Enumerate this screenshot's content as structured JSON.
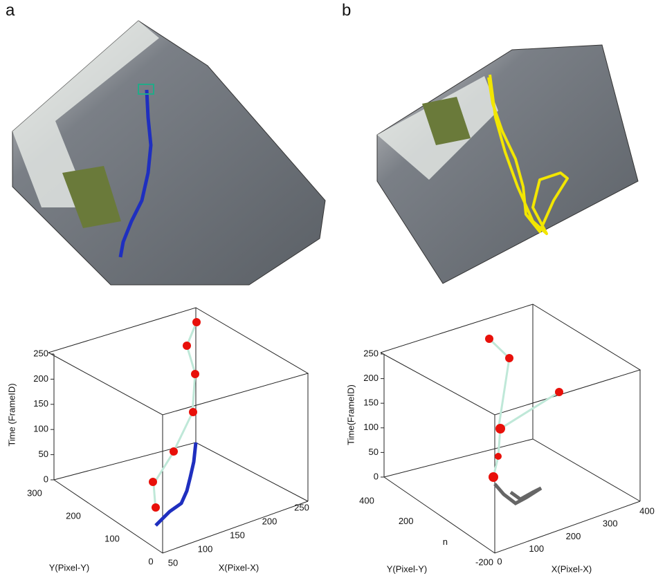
{
  "panels": [
    {
      "label": "a",
      "plot": {
        "z_title": "Time (FrameID)",
        "y_title": "Y(Pixel-Y)",
        "x_title": "X(Pixel-X)",
        "z_lim": [
          0,
          250
        ],
        "z_ticks": [
          0,
          50,
          100,
          150,
          200,
          250
        ],
        "y_lim": [
          300,
          0
        ],
        "y_ticks": [
          300,
          200,
          100,
          0
        ],
        "x_lim": [
          50,
          250
        ],
        "x_ticks": [
          50,
          100,
          150,
          200,
          250
        ]
      }
    },
    {
      "label": "b",
      "plot": {
        "z_title": "Time(FrameID)",
        "y_title": "Y(Pixel-Y)",
        "x_title": "X(Pixel-X)",
        "z_lim": [
          0,
          250
        ],
        "z_ticks": [
          0,
          50,
          100,
          150,
          200,
          250
        ],
        "y_lim": [
          400,
          -200
        ],
        "y_ticks": [
          400,
          200,
          {
            "value": 0,
            "label": "n"
          },
          -200
        ],
        "x_lim": [
          0,
          400
        ],
        "x_ticks": [
          0,
          100,
          200,
          300,
          400
        ]
      }
    }
  ]
}
